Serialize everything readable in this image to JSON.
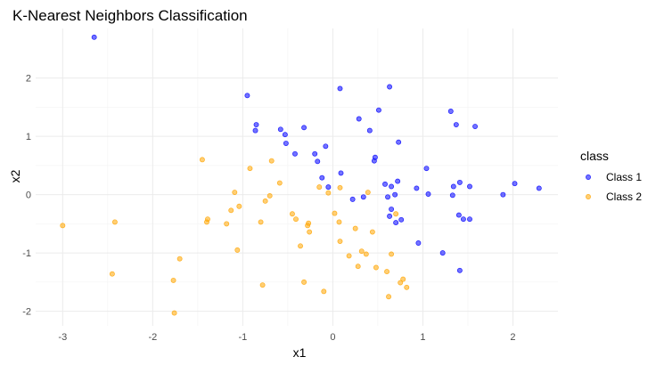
{
  "chart_data": {
    "type": "scatter",
    "title": "K-Nearest Neighbors Classification",
    "xlabel": "x1",
    "ylabel": "x2",
    "xlim": [
      -3.3,
      2.5
    ],
    "ylim": [
      -2.25,
      2.85
    ],
    "x_ticks": [
      -3,
      -2,
      -1,
      0,
      1,
      2
    ],
    "y_ticks": [
      -2,
      -1,
      0,
      1,
      2
    ],
    "grid": true,
    "legend": {
      "title": "class",
      "position": "right"
    },
    "series": [
      {
        "name": "Class 1",
        "color": "#0000ff",
        "points": [
          [
            -2.65,
            2.7
          ],
          [
            -0.95,
            1.7
          ],
          [
            -0.85,
            1.2
          ],
          [
            -0.86,
            1.1
          ],
          [
            -0.58,
            1.12
          ],
          [
            -0.53,
            1.03
          ],
          [
            -0.52,
            0.88
          ],
          [
            -0.42,
            0.7
          ],
          [
            -0.32,
            1.15
          ],
          [
            -0.2,
            0.7
          ],
          [
            -0.17,
            0.57
          ],
          [
            -0.12,
            0.29
          ],
          [
            -0.08,
            0.83
          ],
          [
            -0.05,
            0.13
          ],
          [
            0.08,
            1.82
          ],
          [
            0.09,
            0.37
          ],
          [
            0.22,
            -0.08
          ],
          [
            0.29,
            1.3
          ],
          [
            0.34,
            -0.04
          ],
          [
            0.41,
            1.1
          ],
          [
            0.46,
            0.58
          ],
          [
            0.47,
            0.64
          ],
          [
            0.51,
            1.45
          ],
          [
            0.58,
            0.18
          ],
          [
            0.61,
            -0.04
          ],
          [
            0.63,
            1.85
          ],
          [
            0.63,
            -0.37
          ],
          [
            0.65,
            -0.25
          ],
          [
            0.65,
            0.14
          ],
          [
            0.69,
            0.0
          ],
          [
            0.7,
            -0.48
          ],
          [
            0.72,
            0.23
          ],
          [
            0.73,
            0.9
          ],
          [
            0.76,
            -0.43
          ],
          [
            0.93,
            0.11
          ],
          [
            0.95,
            -0.83
          ],
          [
            1.04,
            0.45
          ],
          [
            1.06,
            0.01
          ],
          [
            1.22,
            -1.0
          ],
          [
            1.31,
            1.43
          ],
          [
            1.33,
            -0.01
          ],
          [
            1.34,
            0.14
          ],
          [
            1.37,
            1.2
          ],
          [
            1.4,
            -0.35
          ],
          [
            1.41,
            -1.3
          ],
          [
            1.41,
            0.21
          ],
          [
            1.45,
            -0.42
          ],
          [
            1.52,
            -0.42
          ],
          [
            1.52,
            0.14
          ],
          [
            1.58,
            1.17
          ],
          [
            1.89,
            0.0
          ],
          [
            2.02,
            0.19
          ],
          [
            2.29,
            0.11
          ]
        ]
      },
      {
        "name": "Class 2",
        "color": "#ffa500",
        "points": [
          [
            -3.0,
            -0.53
          ],
          [
            -2.45,
            -1.36
          ],
          [
            -2.42,
            -0.47
          ],
          [
            -1.77,
            -1.47
          ],
          [
            -1.76,
            -2.03
          ],
          [
            -1.7,
            -1.1
          ],
          [
            -1.45,
            0.6
          ],
          [
            -1.4,
            -0.47
          ],
          [
            -1.39,
            -0.42
          ],
          [
            -1.18,
            -0.5
          ],
          [
            -1.13,
            -0.27
          ],
          [
            -1.09,
            0.04
          ],
          [
            -1.06,
            -0.95
          ],
          [
            -1.04,
            -0.2
          ],
          [
            -0.92,
            0.45
          ],
          [
            -0.8,
            -0.47
          ],
          [
            -0.78,
            -1.55
          ],
          [
            -0.75,
            -0.11
          ],
          [
            -0.7,
            -0.02
          ],
          [
            -0.68,
            0.58
          ],
          [
            -0.59,
            0.2
          ],
          [
            -0.45,
            -0.33
          ],
          [
            -0.41,
            -0.42
          ],
          [
            -0.36,
            -0.88
          ],
          [
            -0.32,
            -1.5
          ],
          [
            -0.28,
            -0.53
          ],
          [
            -0.27,
            -0.49
          ],
          [
            -0.26,
            -0.64
          ],
          [
            -0.15,
            0.13
          ],
          [
            -0.1,
            -1.66
          ],
          [
            -0.05,
            0.03
          ],
          [
            0.07,
            -0.47
          ],
          [
            0.08,
            -0.8
          ],
          [
            0.08,
            0.12
          ],
          [
            0.18,
            -1.05
          ],
          [
            0.25,
            -0.58
          ],
          [
            0.28,
            -1.23
          ],
          [
            0.32,
            -0.97
          ],
          [
            0.37,
            -1.02
          ],
          [
            0.39,
            0.04
          ],
          [
            0.44,
            -0.64
          ],
          [
            0.48,
            -1.25
          ],
          [
            0.6,
            -1.32
          ],
          [
            0.62,
            -1.75
          ],
          [
            0.65,
            -1.02
          ],
          [
            0.7,
            -0.33
          ],
          [
            0.75,
            -1.51
          ],
          [
            0.78,
            -1.45
          ],
          [
            0.82,
            -1.59
          ],
          [
            0.02,
            -0.32
          ]
        ]
      }
    ]
  }
}
